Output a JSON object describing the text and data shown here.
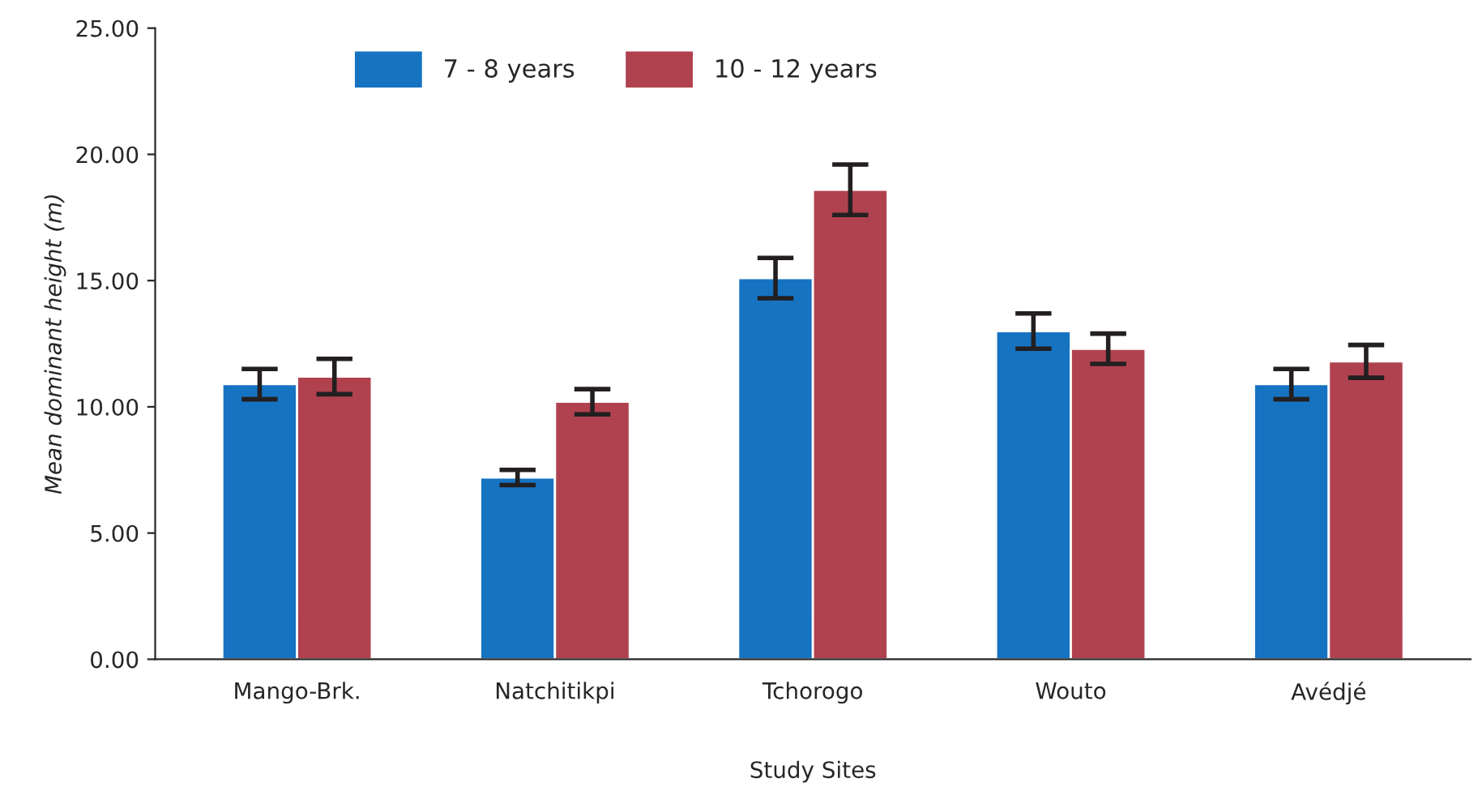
{
  "chart_data": {
    "type": "bar",
    "xlabel": "Study Sites",
    "ylabel": "Mean dominant height (m)",
    "categories": [
      "Mango-Brk.",
      "Natchitikpi",
      "Tchorogo",
      "Wouto",
      "Avédjé"
    ],
    "series": [
      {
        "name": "7 - 8 years",
        "color": "#1673c1",
        "values": [
          10.9,
          7.2,
          15.1,
          13.0,
          10.9
        ],
        "errors": [
          0.6,
          0.3,
          0.8,
          0.7,
          0.6
        ]
      },
      {
        "name": "10 - 12 years",
        "color": "#b0424f",
        "values": [
          11.2,
          10.2,
          18.6,
          12.3,
          11.8
        ],
        "errors": [
          0.7,
          0.5,
          1.0,
          0.6,
          0.65
        ]
      }
    ],
    "ylim": [
      0,
      25
    ],
    "yticks": [
      {
        "value": 0,
        "label": "0.00"
      },
      {
        "value": 5,
        "label": "5.00"
      },
      {
        "value": 10,
        "label": "10.00"
      },
      {
        "value": 15,
        "label": "15.00"
      },
      {
        "value": 20,
        "label": "20.00"
      },
      {
        "value": 25,
        "label": "25.00"
      }
    ],
    "grid": false,
    "legend": "top"
  }
}
